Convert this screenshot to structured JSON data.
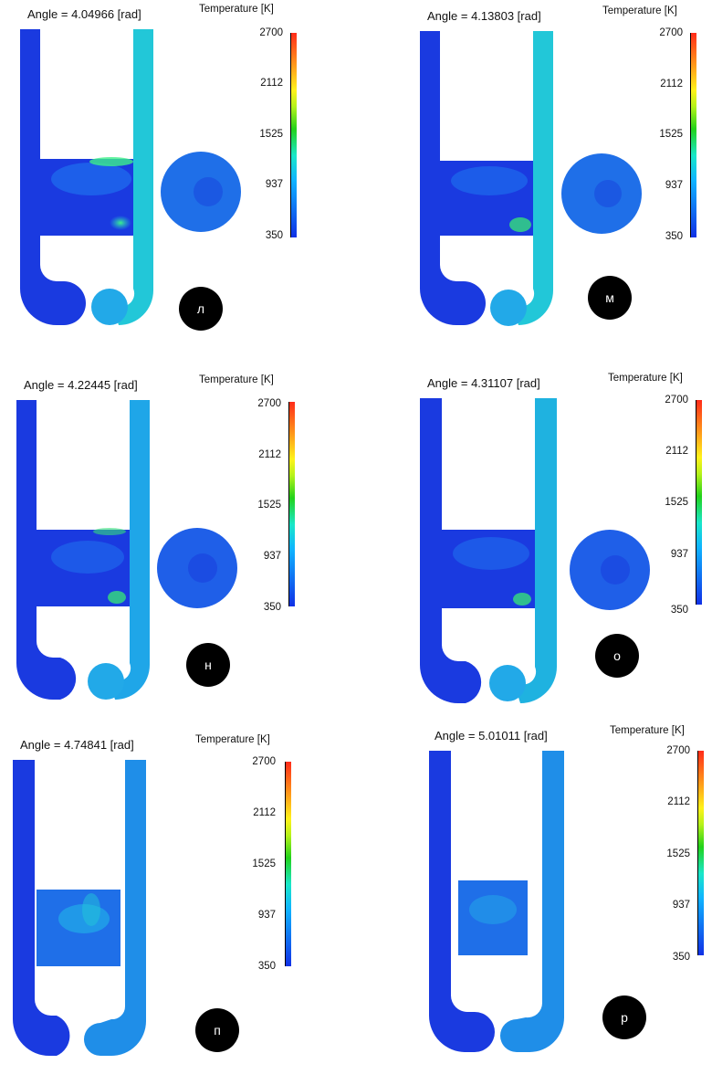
{
  "panels": [
    {
      "angle": "Angle = 4.04966 [rad]",
      "title": "Temperature [K]",
      "ticks": [
        "2700",
        "2112",
        "1525",
        "937",
        "350"
      ],
      "label": "л"
    },
    {
      "angle": "Angle = 4.13803 [rad]",
      "title": "Temperature [K]",
      "ticks": [
        "2700",
        "2112",
        "1525",
        "937",
        "350"
      ],
      "label": "м"
    },
    {
      "angle": "Angle = 4.22445 [rad]",
      "title": "Temperature [K]",
      "ticks": [
        "2700",
        "2112",
        "1525",
        "937",
        "350"
      ],
      "label": "н"
    },
    {
      "angle": "Angle = 4.31107 [rad]",
      "title": "Temperature [K]",
      "ticks": [
        "2700",
        "2112",
        "1525",
        "937",
        "350"
      ],
      "label": "о"
    },
    {
      "angle": "Angle = 4.74841 [rad]",
      "title": "Temperature [K]",
      "ticks": [
        "2700",
        "2112",
        "1525",
        "937",
        "350"
      ],
      "label": "п"
    },
    {
      "angle": "Angle = 5.01011 [rad]",
      "title": "Temperature [K]",
      "ticks": [
        "2700",
        "2112",
        "1525",
        "937",
        "350"
      ],
      "label": "р"
    }
  ],
  "colors": {
    "cold": "#1a3ae0",
    "cool": "#1f78f0",
    "warm": "#1fc6d9",
    "hot": "#36e07a"
  }
}
